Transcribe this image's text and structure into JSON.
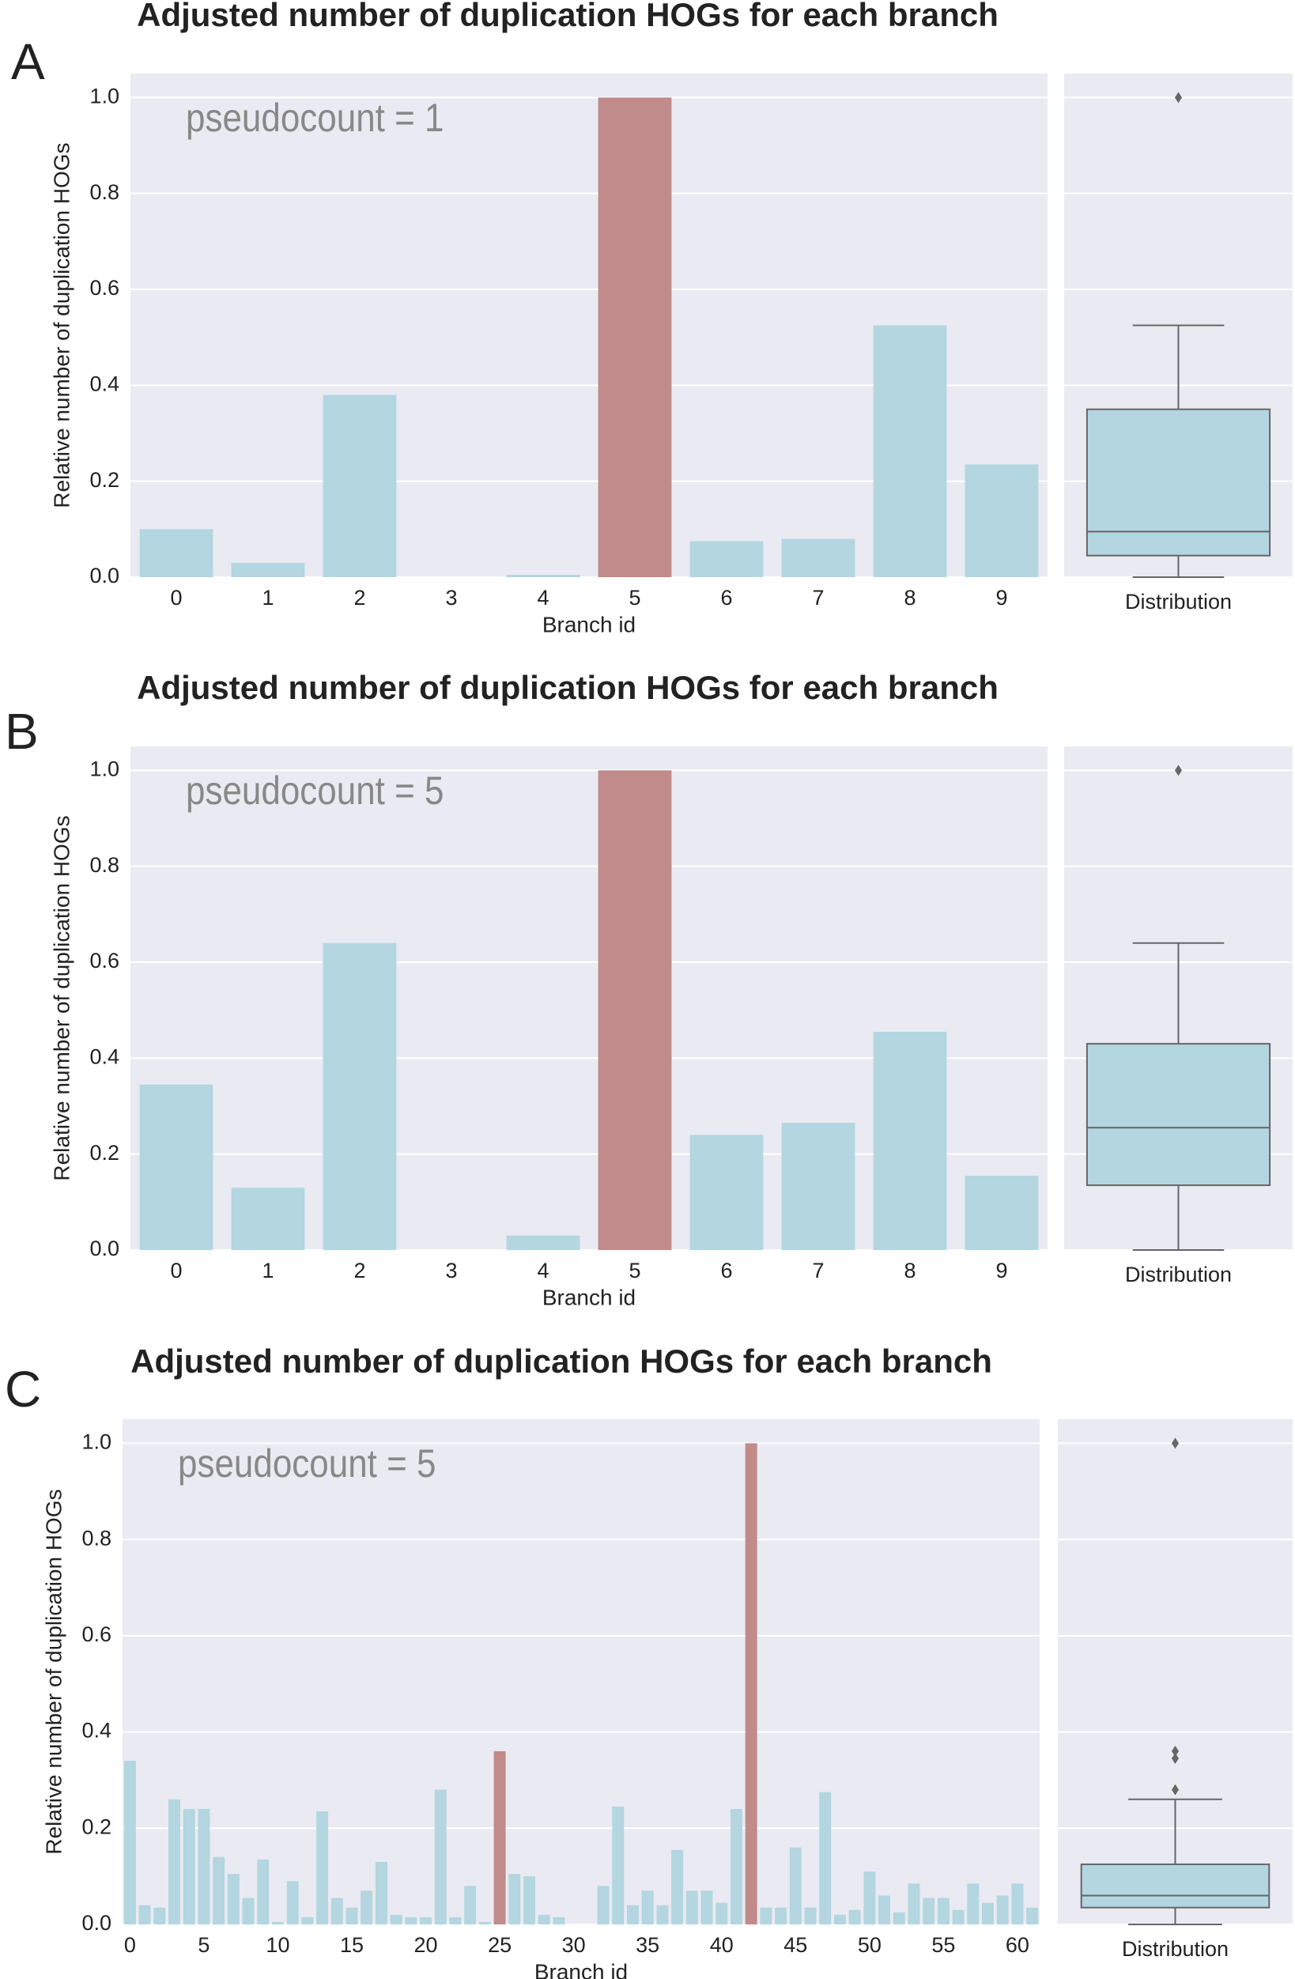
{
  "chart_data": [
    {
      "type": "bar",
      "panel_label": "A",
      "title": "Adjusted number of duplication HOGs for each branch",
      "annotation": "pseudocount = 1",
      "ylabel": "Relative number of duplication HOGs",
      "xlabel": "Branch id",
      "categories": [
        "0",
        "1",
        "2",
        "3",
        "4",
        "5",
        "6",
        "7",
        "8",
        "9"
      ],
      "values": [
        0.1,
        0.03,
        0.38,
        0,
        0.005,
        1.0,
        0.075,
        0.08,
        0.525,
        0.235
      ],
      "colors": [
        "#b3d6e0",
        "#b3d6e0",
        "#b3d6e0",
        "#b3d6e0",
        "#b3d6e0",
        "#c08b8a",
        "#b3d6e0",
        "#b3d6e0",
        "#b3d6e0",
        "#b3d6e0"
      ],
      "ylim": [
        0,
        1.05
      ],
      "yticks": [
        {
          "value": 0,
          "label": "0.0"
        },
        {
          "value": 0.2,
          "label": "0.2"
        },
        {
          "value": 0.4,
          "label": "0.4"
        },
        {
          "value": 0.6,
          "label": "0.6"
        },
        {
          "value": 0.8,
          "label": "0.8"
        },
        {
          "value": 1,
          "label": "1.0"
        }
      ],
      "grid": true,
      "box": {
        "label": "Distribution",
        "color": "#b3d6e0",
        "whislo": 0,
        "q1": 0.045,
        "median": 0.095,
        "q3": 0.35,
        "whishi": 0.525,
        "fliers": [
          1.0
        ]
      }
    },
    {
      "type": "bar",
      "panel_label": "B",
      "title": "Adjusted number of duplication HOGs for each branch",
      "annotation": "pseudocount = 5",
      "ylabel": "Relative number of duplication HOGs",
      "xlabel": "Branch id",
      "categories": [
        "0",
        "1",
        "2",
        "3",
        "4",
        "5",
        "6",
        "7",
        "8",
        "9"
      ],
      "values": [
        0.345,
        0.13,
        0.64,
        0,
        0.03,
        1.0,
        0.24,
        0.265,
        0.455,
        0.155
      ],
      "colors": [
        "#b3d6e0",
        "#b3d6e0",
        "#b3d6e0",
        "#b3d6e0",
        "#b3d6e0",
        "#c08b8a",
        "#b3d6e0",
        "#b3d6e0",
        "#b3d6e0",
        "#b3d6e0"
      ],
      "ylim": [
        0,
        1.05
      ],
      "yticks": [
        {
          "value": 0,
          "label": "0.0"
        },
        {
          "value": 0.2,
          "label": "0.2"
        },
        {
          "value": 0.4,
          "label": "0.4"
        },
        {
          "value": 0.6,
          "label": "0.6"
        },
        {
          "value": 0.8,
          "label": "0.8"
        },
        {
          "value": 1,
          "label": "1.0"
        }
      ],
      "grid": true,
      "box": {
        "label": "Distribution",
        "color": "#b3d6e0",
        "whislo": 0,
        "q1": 0.135,
        "median": 0.255,
        "q3": 0.43,
        "whishi": 0.64,
        "fliers": [
          1.0
        ]
      }
    },
    {
      "type": "bar",
      "panel_label": "C",
      "title": "Adjusted number of duplication HOGs for each branch",
      "annotation": "pseudocount = 5",
      "ylabel": "Relative number of duplication HOGs",
      "xlabel": "Branch id",
      "categories": [
        "0",
        null,
        null,
        null,
        null,
        "5",
        null,
        null,
        null,
        null,
        "10",
        null,
        null,
        null,
        null,
        "15",
        null,
        null,
        null,
        null,
        "20",
        null,
        null,
        null,
        null,
        "25",
        null,
        null,
        null,
        null,
        "30",
        null,
        null,
        null,
        null,
        "35",
        null,
        null,
        null,
        null,
        "40",
        null,
        null,
        null,
        null,
        "45",
        null,
        null,
        null,
        null,
        "50",
        null,
        null,
        null,
        null,
        "55",
        null,
        null,
        null,
        null,
        "60",
        null
      ],
      "values": [
        0.34,
        0.04,
        0.035,
        0.26,
        0.24,
        0.24,
        0.14,
        0.105,
        0.055,
        0.135,
        0.005,
        0.09,
        0.015,
        0.235,
        0.055,
        0.035,
        0.07,
        0.13,
        0.02,
        0.015,
        0.015,
        0.28,
        0.015,
        0.08,
        0.005,
        0.36,
        0.105,
        0.1,
        0.02,
        0.015,
        0,
        0,
        0.08,
        0.245,
        0.04,
        0.07,
        0.04,
        0.155,
        0.07,
        0.07,
        0.045,
        0.24,
        1.0,
        0.035,
        0.035,
        0.16,
        0.035,
        0.275,
        0.02,
        0.03,
        0.11,
        0.06,
        0.025,
        0.085,
        0.055,
        0.055,
        0.03,
        0.085,
        0.045,
        0.06,
        0.085,
        0.035
      ],
      "colors": [
        "#b3d6e0",
        "#b3d6e0",
        "#b3d6e0",
        "#b3d6e0",
        "#b3d6e0",
        "#b3d6e0",
        "#b3d6e0",
        "#b3d6e0",
        "#b3d6e0",
        "#b3d6e0",
        "#b3d6e0",
        "#b3d6e0",
        "#b3d6e0",
        "#b3d6e0",
        "#b3d6e0",
        "#b3d6e0",
        "#b3d6e0",
        "#b3d6e0",
        "#b3d6e0",
        "#b3d6e0",
        "#b3d6e0",
        "#b3d6e0",
        "#b3d6e0",
        "#b3d6e0",
        "#b3d6e0",
        "#c08b8a",
        "#b3d6e0",
        "#b3d6e0",
        "#b3d6e0",
        "#b3d6e0",
        "#b3d6e0",
        "#b3d6e0",
        "#b3d6e0",
        "#b3d6e0",
        "#b3d6e0",
        "#b3d6e0",
        "#b3d6e0",
        "#b3d6e0",
        "#b3d6e0",
        "#b3d6e0",
        "#b3d6e0",
        "#b3d6e0",
        "#c08b8a",
        "#b3d6e0",
        "#b3d6e0",
        "#b3d6e0",
        "#b3d6e0",
        "#b3d6e0",
        "#b3d6e0",
        "#b3d6e0",
        "#b3d6e0",
        "#b3d6e0",
        "#b3d6e0",
        "#b3d6e0",
        "#b3d6e0",
        "#b3d6e0",
        "#b3d6e0",
        "#b3d6e0",
        "#b3d6e0",
        "#b3d6e0",
        "#b3d6e0",
        "#b3d6e0"
      ],
      "ylim": [
        0,
        1.05
      ],
      "yticks": [
        {
          "value": 0,
          "label": "0.0"
        },
        {
          "value": 0.2,
          "label": "0.2"
        },
        {
          "value": 0.4,
          "label": "0.4"
        },
        {
          "value": 0.6,
          "label": "0.6"
        },
        {
          "value": 0.8,
          "label": "0.8"
        },
        {
          "value": 1,
          "label": "1.0"
        }
      ],
      "grid": true,
      "box": {
        "label": "Distribution",
        "color": "#b3d6e0",
        "whislo": 0,
        "q1": 0.035,
        "median": 0.06,
        "q3": 0.125,
        "whishi": 0.26,
        "fliers": [
          1.0,
          0.36,
          0.345,
          0.28
        ]
      }
    }
  ]
}
